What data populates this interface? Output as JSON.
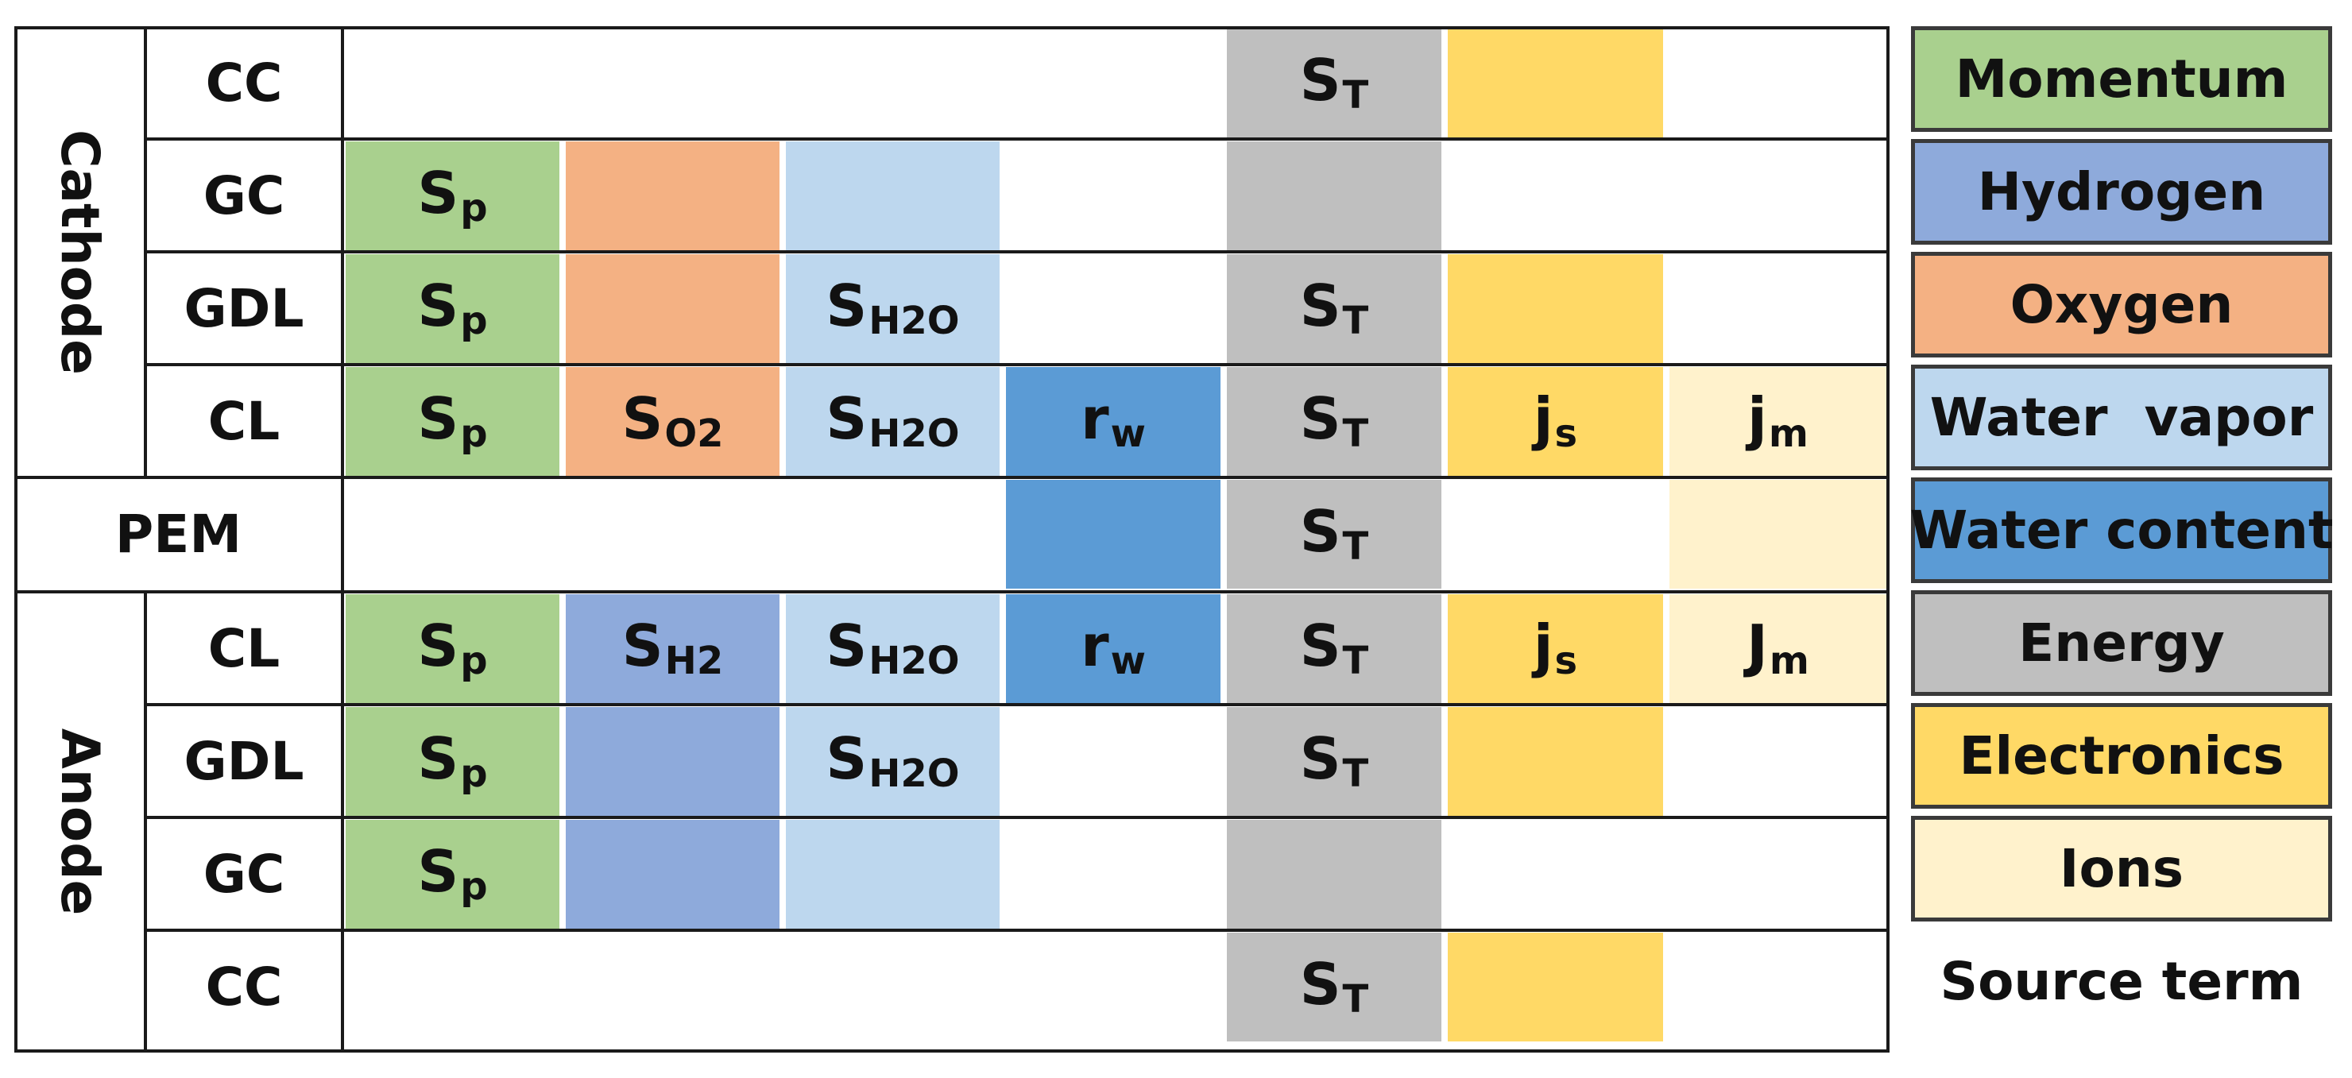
{
  "groups": {
    "cathode": "Cathode",
    "anode": "Anode"
  },
  "rows": [
    {
      "label": "CC"
    },
    {
      "label": "GC"
    },
    {
      "label": "GDL"
    },
    {
      "label": "CL"
    },
    {
      "label": "PEM"
    },
    {
      "label": "CL"
    },
    {
      "label": "GDL"
    },
    {
      "label": "GC"
    },
    {
      "label": "CC"
    }
  ],
  "colors": {
    "momentum": "#a9d08e",
    "hydrogen": "#8eaadb",
    "oxygen": "#f4b183",
    "water_vapor": "#bdd7ee",
    "water_content": "#5b9bd5",
    "energy": "#bfbfbf",
    "electronics": "#ffd966",
    "ions": "#fff2cc"
  },
  "symbols": {
    "sp": {
      "base": "S",
      "sub": "p"
    },
    "so2": {
      "base": "S",
      "sub": "O2"
    },
    "sh2": {
      "base": "S",
      "sub": "H2"
    },
    "sh2o": {
      "base": "S",
      "sub": "H2O"
    },
    "rw": {
      "base": "r",
      "sub": "w"
    },
    "st": {
      "base": "S",
      "sub": "T"
    },
    "js": {
      "base": "j",
      "sub": "s"
    },
    "jm": {
      "base": "j",
      "sub": "m"
    },
    "Jm": {
      "base": "J",
      "sub": "m"
    }
  },
  "cells": [
    {
      "row": 0,
      "col": 4,
      "fill": "energy",
      "sym": "st"
    },
    {
      "row": 0,
      "col": 5,
      "fill": "electronics"
    },
    {
      "row": 1,
      "col": 0,
      "fill": "momentum",
      "sym": "sp"
    },
    {
      "row": 1,
      "col": 1,
      "fill": "oxygen"
    },
    {
      "row": 1,
      "col": 2,
      "fill": "water_vapor"
    },
    {
      "row": 1,
      "col": 4,
      "fill": "energy"
    },
    {
      "row": 2,
      "col": 0,
      "fill": "momentum",
      "sym": "sp"
    },
    {
      "row": 2,
      "col": 1,
      "fill": "oxygen"
    },
    {
      "row": 2,
      "col": 2,
      "fill": "water_vapor",
      "sym": "sh2o"
    },
    {
      "row": 2,
      "col": 4,
      "fill": "energy",
      "sym": "st"
    },
    {
      "row": 2,
      "col": 5,
      "fill": "electronics"
    },
    {
      "row": 3,
      "col": 0,
      "fill": "momentum",
      "sym": "sp"
    },
    {
      "row": 3,
      "col": 1,
      "fill": "oxygen",
      "sym": "so2"
    },
    {
      "row": 3,
      "col": 2,
      "fill": "water_vapor",
      "sym": "sh2o"
    },
    {
      "row": 3,
      "col": 3,
      "fill": "water_content",
      "sym": "rw"
    },
    {
      "row": 3,
      "col": 4,
      "fill": "energy",
      "sym": "st"
    },
    {
      "row": 3,
      "col": 5,
      "fill": "electronics",
      "sym": "js"
    },
    {
      "row": 3,
      "col": 6,
      "fill": "ions",
      "sym": "jm"
    },
    {
      "row": 4,
      "col": 3,
      "fill": "water_content"
    },
    {
      "row": 4,
      "col": 4,
      "fill": "energy",
      "sym": "st"
    },
    {
      "row": 4,
      "col": 6,
      "fill": "ions"
    },
    {
      "row": 5,
      "col": 0,
      "fill": "momentum",
      "sym": "sp"
    },
    {
      "row": 5,
      "col": 1,
      "fill": "hydrogen",
      "sym": "sh2"
    },
    {
      "row": 5,
      "col": 2,
      "fill": "water_vapor",
      "sym": "sh2o"
    },
    {
      "row": 5,
      "col": 3,
      "fill": "water_content",
      "sym": "rw"
    },
    {
      "row": 5,
      "col": 4,
      "fill": "energy",
      "sym": "st"
    },
    {
      "row": 5,
      "col": 5,
      "fill": "electronics",
      "sym": "js"
    },
    {
      "row": 5,
      "col": 6,
      "fill": "ions",
      "sym": "Jm"
    },
    {
      "row": 6,
      "col": 0,
      "fill": "momentum",
      "sym": "sp"
    },
    {
      "row": 6,
      "col": 1,
      "fill": "hydrogen"
    },
    {
      "row": 6,
      "col": 2,
      "fill": "water_vapor",
      "sym": "sh2o"
    },
    {
      "row": 6,
      "col": 4,
      "fill": "energy",
      "sym": "st"
    },
    {
      "row": 6,
      "col": 5,
      "fill": "electronics"
    },
    {
      "row": 7,
      "col": 0,
      "fill": "momentum",
      "sym": "sp"
    },
    {
      "row": 7,
      "col": 1,
      "fill": "hydrogen"
    },
    {
      "row": 7,
      "col": 2,
      "fill": "water_vapor"
    },
    {
      "row": 7,
      "col": 4,
      "fill": "energy"
    },
    {
      "row": 8,
      "col": 4,
      "fill": "energy",
      "sym": "st"
    },
    {
      "row": 8,
      "col": 5,
      "fill": "electronics"
    }
  ],
  "legend": [
    {
      "key": "momentum",
      "label": "Momentum"
    },
    {
      "key": "hydrogen",
      "label": "Hydrogen"
    },
    {
      "key": "oxygen",
      "label": "Oxygen"
    },
    {
      "key": "water_vapor",
      "label": "Water  vapor"
    },
    {
      "key": "water_content",
      "label": "Water content"
    },
    {
      "key": "energy",
      "label": "Energy"
    },
    {
      "key": "electronics",
      "label": "Electronics"
    },
    {
      "key": "ions",
      "label": "Ions"
    }
  ],
  "legend_footer": "Source term"
}
